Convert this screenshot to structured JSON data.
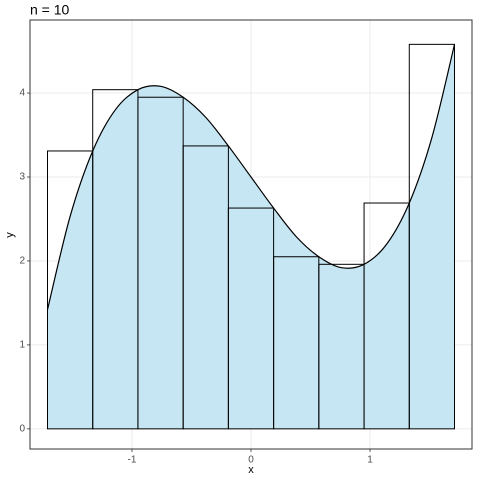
{
  "chart_data": {
    "type": "layers",
    "title": "n = 10",
    "x_label": "x",
    "y_label": "y",
    "xlim": [
      -1.857,
      1.857
    ],
    "ylim": [
      -0.24,
      4.87
    ],
    "xticks": [
      -1,
      0,
      1
    ],
    "yticks": [
      0,
      1,
      2,
      3,
      4
    ],
    "grid": true,
    "layers": [
      {
        "type": "area",
        "color": "#c6e6f3",
        "line_color": "#000000",
        "x": [
          -1.71,
          -1.52,
          -1.33,
          -1.14,
          -0.95,
          -0.76,
          -0.57,
          -0.38,
          -0.19,
          0,
          0.19,
          0.38,
          0.57,
          0.76,
          0.95,
          1.14,
          1.33,
          1.52,
          1.71
        ],
        "values": [
          1.42,
          2.53,
          3.31,
          3.8,
          4.04,
          4.08,
          3.95,
          3.71,
          3.37,
          3,
          2.63,
          2.29,
          2.05,
          1.92,
          1.96,
          2.2,
          2.69,
          3.47,
          4.58
        ]
      },
      {
        "type": "histogram",
        "color": "#000000",
        "bins": [
          -1.71,
          -1.33,
          -0.95,
          -0.57,
          -0.19,
          0.19,
          0.57,
          0.95,
          1.33,
          1.71
        ],
        "values": [
          3.31,
          4.04,
          3.95,
          3.37,
          2.63,
          2.05,
          1.96,
          2.69,
          4.58
        ]
      }
    ]
  }
}
